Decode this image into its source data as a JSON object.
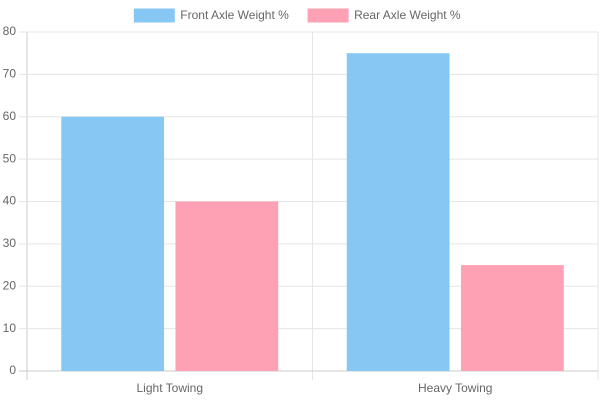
{
  "chart_data": {
    "type": "bar",
    "categories": [
      "Light Towing",
      "Heavy Towing"
    ],
    "series": [
      {
        "name": "Front Axle Weight %",
        "color": "#86c7f3",
        "values": [
          60,
          75
        ]
      },
      {
        "name": "Rear Axle Weight %",
        "color": "#ffa1b5",
        "values": [
          40,
          25
        ]
      }
    ],
    "ylim": [
      0,
      80
    ],
    "yticks": [
      0,
      10,
      20,
      30,
      40,
      50,
      60,
      70,
      80
    ],
    "grid": true,
    "legend": "top"
  }
}
